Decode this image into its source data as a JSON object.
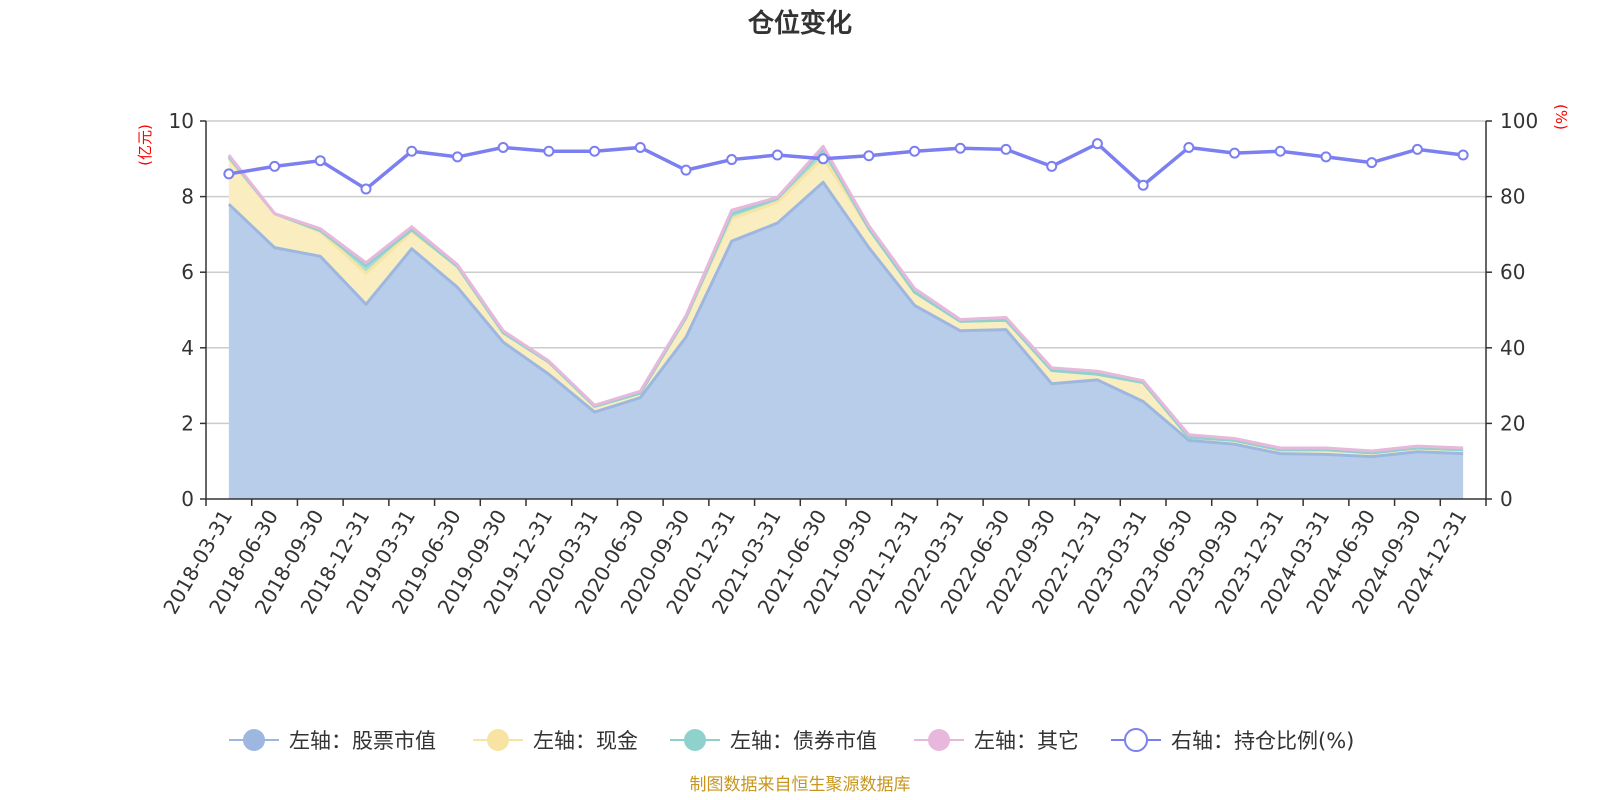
{
  "chart_data": {
    "type": "area",
    "title": "仓位变化",
    "left_unit": "(亿元)",
    "right_unit": "(%)",
    "left_ylim": [
      0,
      10
    ],
    "left_ticks": [
      "0",
      "2",
      "4",
      "6",
      "8",
      "10"
    ],
    "right_ylim": [
      0,
      100
    ],
    "right_ticks": [
      "0",
      "20",
      "40",
      "60",
      "80",
      "100"
    ],
    "categories": [
      "2018-03-31",
      "2018-06-30",
      "2018-09-30",
      "2018-12-31",
      "2019-03-31",
      "2019-06-30",
      "2019-09-30",
      "2019-12-31",
      "2020-03-31",
      "2020-06-30",
      "2020-09-30",
      "2020-12-31",
      "2021-03-31",
      "2021-06-30",
      "2021-09-30",
      "2021-12-31",
      "2022-03-31",
      "2022-06-30",
      "2022-09-30",
      "2022-12-31",
      "2023-03-31",
      "2023-06-30",
      "2023-09-30",
      "2023-12-31",
      "2024-03-31",
      "2024-06-30",
      "2024-09-30",
      "2024-12-31"
    ],
    "series": [
      {
        "name": "左轴：股票市值",
        "axis": "left",
        "color": "#9db7e0",
        "fill": "#b8cdea",
        "values": [
          7.8,
          6.65,
          6.42,
          5.15,
          6.62,
          5.6,
          4.15,
          3.3,
          2.3,
          2.68,
          4.28,
          6.82,
          7.3,
          8.38,
          6.65,
          5.12,
          4.45,
          4.48,
          3.05,
          3.15,
          2.58,
          1.55,
          1.45,
          1.2,
          1.18,
          1.12,
          1.25,
          1.2
        ]
      },
      {
        "name": "左轴：现金",
        "axis": "left",
        "color": "#f7e4a3",
        "fill": "#faeec0",
        "values": [
          1.2,
          0.9,
          0.65,
          0.82,
          0.45,
          0.55,
          0.25,
          0.32,
          0.15,
          0.12,
          0.52,
          0.6,
          0.55,
          0.65,
          0.5,
          0.35,
          0.25,
          0.25,
          0.35,
          0.15,
          0.5,
          0.08,
          0.1,
          0.1,
          0.12,
          0.1,
          0.1,
          0.1
        ]
      },
      {
        "name": "左轴：债券市值",
        "axis": "left",
        "color": "#8ed1cd",
        "fill": "#a9ddda",
        "values": [
          0.05,
          0.0,
          0.03,
          0.2,
          0.05,
          0.0,
          0.0,
          0.0,
          0.0,
          0.0,
          0.0,
          0.12,
          0.1,
          0.22,
          0.0,
          0.0,
          0.0,
          0.0,
          0.0,
          0.0,
          0.0,
          0.0,
          0.0,
          0.0,
          0.0,
          0.0,
          0.0,
          0.0
        ]
      },
      {
        "name": "左轴：其它",
        "axis": "left",
        "color": "#e8b7dc",
        "fill": "#f0cfe8",
        "values": [
          0.05,
          0.0,
          0.05,
          0.08,
          0.08,
          0.05,
          0.05,
          0.03,
          0.03,
          0.05,
          0.05,
          0.1,
          0.03,
          0.08,
          0.08,
          0.1,
          0.05,
          0.07,
          0.07,
          0.08,
          0.05,
          0.07,
          0.05,
          0.05,
          0.05,
          0.05,
          0.05,
          0.05
        ]
      },
      {
        "name": "右轴：持仓比例(%)",
        "axis": "right",
        "color": "#7b7ff0",
        "fill": "none",
        "values": [
          86,
          88,
          89.5,
          82,
          92,
          90.5,
          93,
          92,
          92,
          93,
          87,
          89.8,
          91,
          90,
          90.8,
          92,
          92.8,
          92.5,
          88,
          94,
          83,
          93,
          91.5,
          92,
          90.5,
          89,
          92.5,
          91
        ]
      }
    ],
    "legend_position": "bottom",
    "grid": true
  },
  "source_note": "制图数据来自恒生聚源数据库"
}
